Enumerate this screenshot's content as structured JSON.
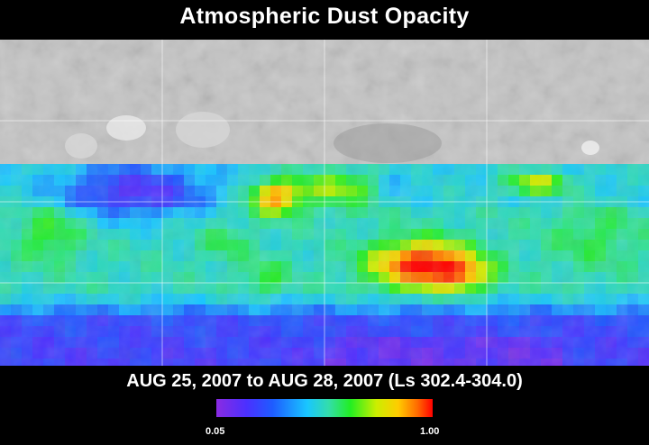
{
  "title": "Atmospheric Dust Opacity",
  "date_range": "AUG 25, 2007 to AUG 28, 2007 (Ls 302.4-304.0)",
  "colorbar": {
    "min_label": "0.05",
    "max_label": "1.00",
    "colors": [
      "#8a2be2",
      "#4b30ff",
      "#1e5cff",
      "#19c6ff",
      "#33ddaa",
      "#22ee22",
      "#ccee00",
      "#ffcc00",
      "#ff6a00",
      "#ff0000"
    ]
  },
  "map": {
    "background": "Mars shaded relief",
    "overlay": "dust opacity grid",
    "gridlines": true
  }
}
